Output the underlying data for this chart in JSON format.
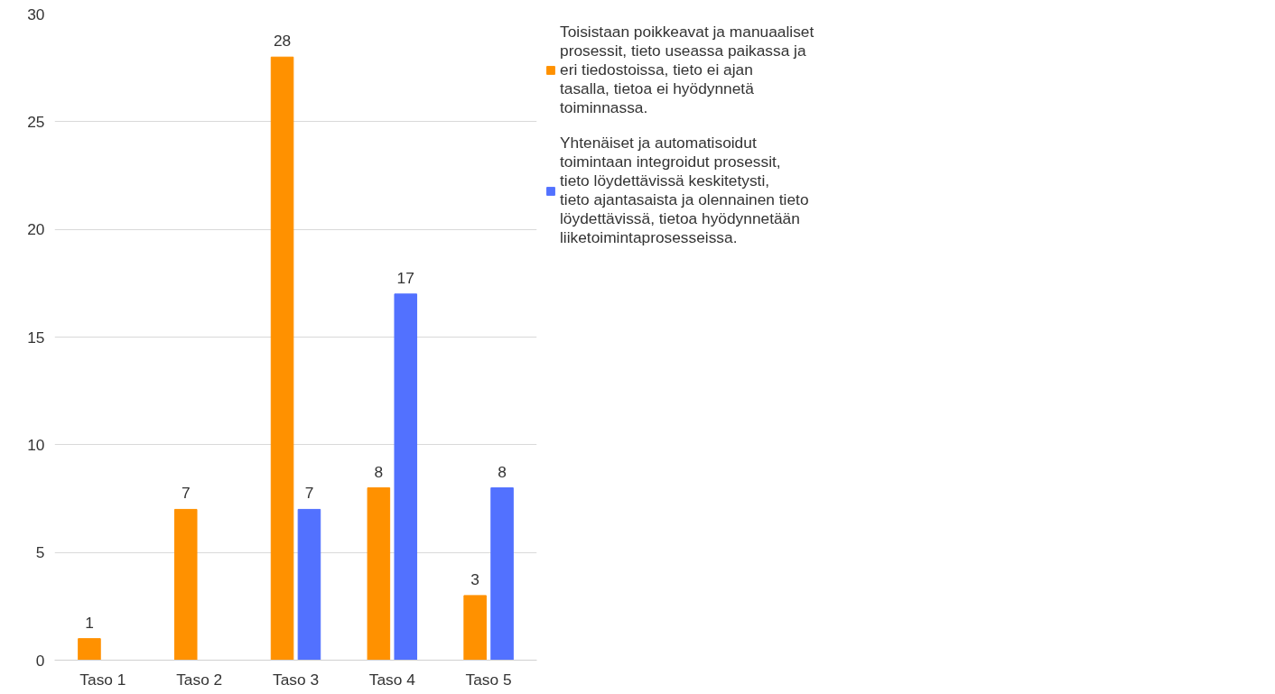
{
  "chart_data": {
    "type": "bar",
    "categories": [
      "Taso 1",
      "Taso 2",
      "Taso 3",
      "Taso 4",
      "Taso 5"
    ],
    "series": [
      {
        "name": "Toisistaan poikkeavat ja manuaaliset prosessit, tieto useassa paikassa ja eri tiedostoissa, tieto ei ajan tasalla, tietoa ei hyödynnetä toiminnassa.",
        "color": "#ff9100",
        "values": [
          1,
          7,
          28,
          8,
          3
        ]
      },
      {
        "name": "Yhtenäiset ja automatisoidut toimintaan integroidut prosessit, tieto löydettävissä keskitetysti, tieto ajantasaista ja olennainen tieto löydettävissä, tietoa hyödynnetään liiketoimintaprosesseissa.",
        "color": "#5271ff",
        "values": [
          null,
          null,
          7,
          17,
          8
        ]
      }
    ],
    "ylim": [
      0,
      30
    ],
    "yticks": [
      0,
      5,
      10,
      15,
      20,
      25,
      30
    ],
    "grid": "y",
    "legend": "right",
    "data_labels": true
  }
}
